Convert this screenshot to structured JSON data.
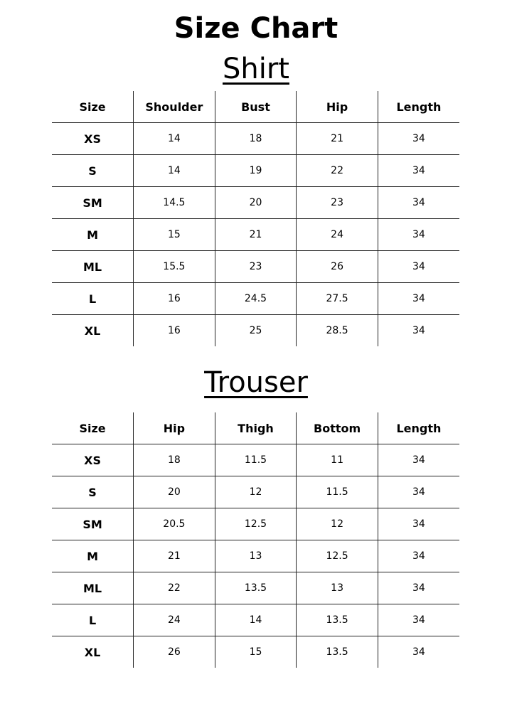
{
  "title": "Size Chart",
  "shirt": {
    "heading": "Shirt",
    "columns": [
      "Size",
      "Shoulder",
      "Bust",
      "Hip",
      "Length"
    ],
    "rows": [
      [
        "XS",
        "14",
        "18",
        "21",
        "34"
      ],
      [
        "S",
        "14",
        "19",
        "22",
        "34"
      ],
      [
        "SM",
        "14.5",
        "20",
        "23",
        "34"
      ],
      [
        "M",
        "15",
        "21",
        "24",
        "34"
      ],
      [
        "ML",
        "15.5",
        "23",
        "26",
        "34"
      ],
      [
        "L",
        "16",
        "24.5",
        "27.5",
        "34"
      ],
      [
        "XL",
        "16",
        "25",
        "28.5",
        "34"
      ]
    ]
  },
  "trouser": {
    "heading": "Trouser",
    "columns": [
      "Size",
      "Hip",
      "Thigh",
      "Bottom",
      "Length"
    ],
    "rows": [
      [
        "XS",
        "18",
        "11.5",
        "11",
        "34"
      ],
      [
        "S",
        "20",
        "12",
        "11.5",
        "34"
      ],
      [
        "SM",
        "20.5",
        "12.5",
        "12",
        "34"
      ],
      [
        "M",
        "21",
        "13",
        "12.5",
        "34"
      ],
      [
        "ML",
        "22",
        "13.5",
        "13",
        "34"
      ],
      [
        "L",
        "24",
        "14",
        "13.5",
        "34"
      ],
      [
        "XL",
        "26",
        "15",
        "13.5",
        "34"
      ]
    ]
  }
}
